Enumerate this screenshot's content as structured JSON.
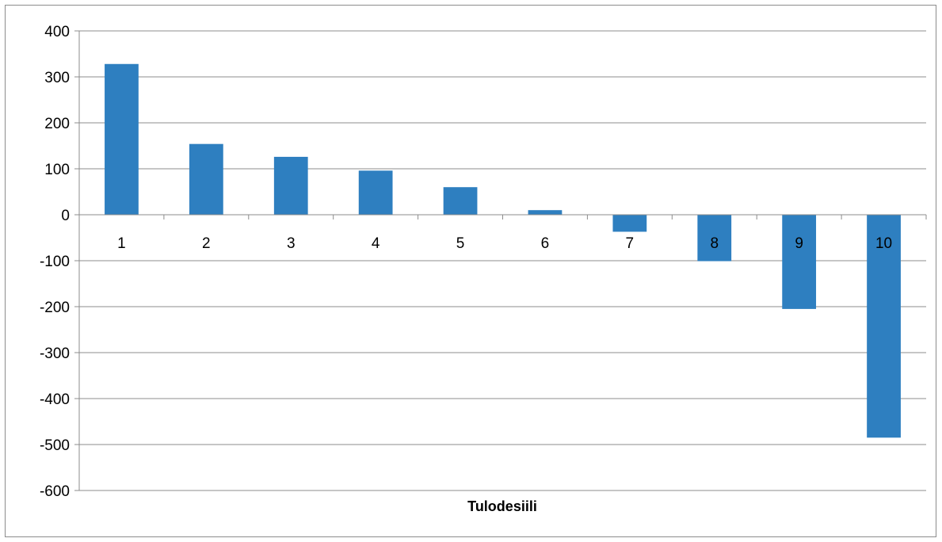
{
  "chart_data": {
    "type": "bar",
    "title": "",
    "xlabel": "Tulodesiili",
    "ylabel": "",
    "categories": [
      "1",
      "2",
      "3",
      "4",
      "5",
      "6",
      "7",
      "8",
      "9",
      "10"
    ],
    "values": [
      328,
      154,
      126,
      96,
      60,
      10,
      -37,
      -101,
      -205,
      -485
    ],
    "ylim": [
      -600,
      400
    ],
    "yticks": [
      400,
      300,
      200,
      100,
      0,
      -100,
      -200,
      -300,
      -400,
      -500,
      -600
    ],
    "grid": true,
    "legend": "none",
    "bar_color": "#2e7fc0",
    "grid_color": "#8c8c8c"
  }
}
